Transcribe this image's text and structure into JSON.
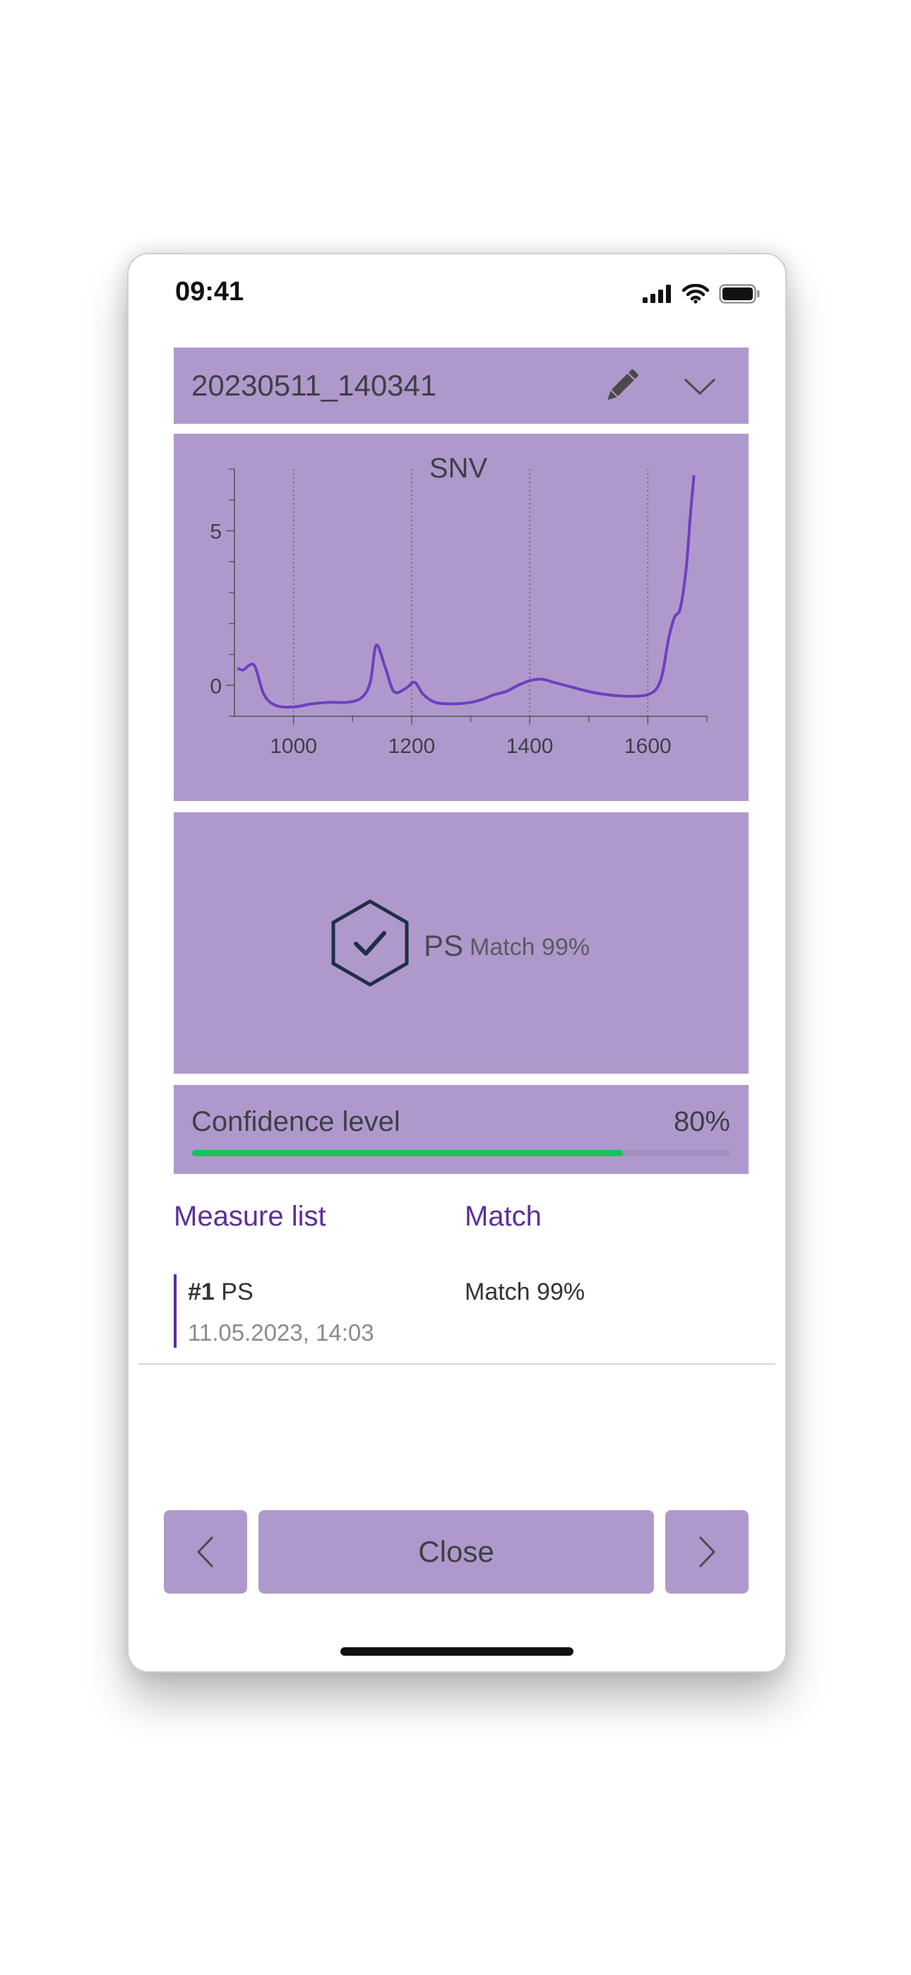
{
  "status": {
    "time": "09:41"
  },
  "header": {
    "title": "20230511_140341",
    "edit_icon": "pencil-icon",
    "expand_icon": "chevron-down-icon"
  },
  "chart_data": {
    "type": "line",
    "title": "SNV",
    "xlabel": "",
    "ylabel": "",
    "xlim": [
      900,
      1700
    ],
    "ylim": [
      -1,
      7
    ],
    "x_ticks": [
      1000,
      1200,
      1400,
      1600
    ],
    "y_ticks": [
      0,
      5
    ],
    "grid": "vertical dotted lines at 1000, 1200, 1400, 1600",
    "line_color": "#6e3fc0",
    "x": [
      905,
      915,
      925,
      935,
      950,
      970,
      1000,
      1030,
      1060,
      1090,
      1115,
      1130,
      1140,
      1155,
      1170,
      1190,
      1205,
      1220,
      1240,
      1270,
      1300,
      1320,
      1340,
      1360,
      1380,
      1400,
      1420,
      1440,
      1460,
      1500,
      1530,
      1560,
      1580,
      1600,
      1615,
      1625,
      1635,
      1645,
      1655,
      1665,
      1672,
      1678
    ],
    "y": [
      0.55,
      0.5,
      0.65,
      0.6,
      -0.3,
      -0.65,
      -0.7,
      -0.6,
      -0.55,
      -0.55,
      -0.4,
      0.1,
      1.3,
      0.6,
      -0.2,
      -0.1,
      0.1,
      -0.3,
      -0.55,
      -0.6,
      -0.55,
      -0.45,
      -0.3,
      -0.2,
      0.0,
      0.15,
      0.2,
      0.1,
      0.0,
      -0.2,
      -0.3,
      -0.35,
      -0.35,
      -0.3,
      -0.1,
      0.4,
      1.5,
      2.2,
      2.5,
      3.8,
      5.5,
      6.8
    ]
  },
  "result": {
    "material": "PS",
    "match_text": "Match 99%",
    "icon": "hexagon-check-icon",
    "icon_color": "#1e3047"
  },
  "confidence": {
    "label": "Confidence level",
    "value": "80%",
    "fraction": 0.8,
    "bar_color": "#19c15a"
  },
  "list": {
    "header_measure": "Measure list",
    "header_match": "Match",
    "rows": [
      {
        "num": "#1",
        "material": "PS",
        "date": "11.05.2023, 14:03",
        "match": "Match 99%"
      }
    ]
  },
  "footer": {
    "close_label": "Close",
    "prev_icon": "chevron-left-icon",
    "next_icon": "chevron-right-icon"
  },
  "colors": {
    "panel": "#af99cc",
    "accent": "#5b2f9c"
  }
}
